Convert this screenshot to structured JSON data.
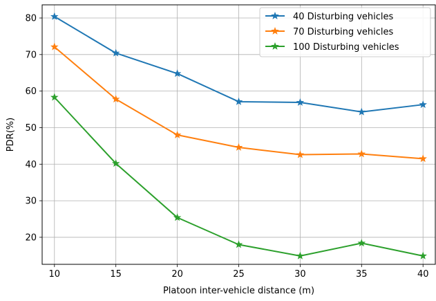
{
  "chart_data": {
    "type": "line",
    "title": "",
    "xlabel": "Platoon inter-vehicle distance (m)",
    "ylabel": "PDR(%)",
    "x": [
      10,
      15,
      20,
      25,
      30,
      35,
      40
    ],
    "xticks": [
      "10",
      "15",
      "20",
      "25",
      "30",
      "35",
      "40"
    ],
    "yticks": [
      "20",
      "30",
      "40",
      "50",
      "60",
      "70",
      "80"
    ],
    "xlim": [
      9.0,
      41.0
    ],
    "ylim": [
      12.6,
      83.6
    ],
    "grid": true,
    "legend_position": "top-right",
    "marker": "star",
    "series": [
      {
        "name": "40 Disturbing vehicles",
        "color": "#1f77b4",
        "values": [
          80.4,
          70.4,
          64.8,
          57.1,
          56.9,
          54.3,
          56.3
        ]
      },
      {
        "name": "70 Disturbing vehicles",
        "color": "#ff7f0e",
        "values": [
          72.1,
          57.8,
          48.0,
          44.6,
          42.6,
          42.8,
          41.5
        ]
      },
      {
        "name": "100 Disturbing vehicles",
        "color": "#2ca02c",
        "values": [
          58.3,
          40.2,
          25.4,
          18.0,
          14.9,
          18.4,
          14.9
        ]
      }
    ]
  }
}
